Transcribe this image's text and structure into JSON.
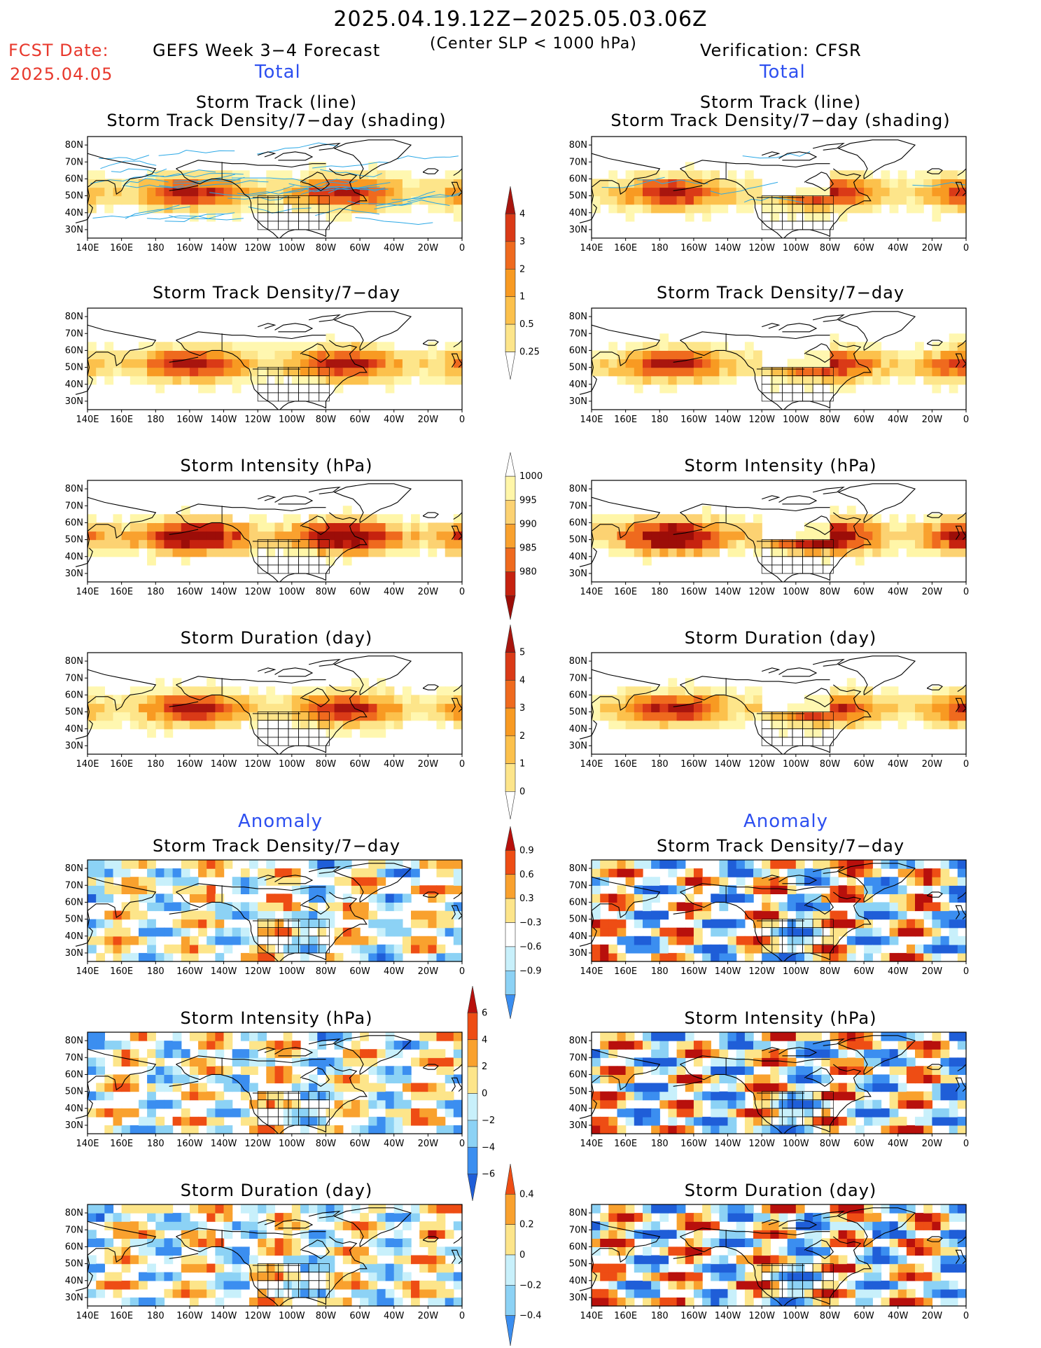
{
  "header": {
    "date_range": "2025.04.19.12Z−2025.05.03.06Z",
    "subtitle": "(Center SLP < 1000 hPa)",
    "fcst_label": "FCST Date:",
    "fcst_date": "2025.04.05",
    "forecast_label": "GEFS Week 3−4 Forecast",
    "verification_label": "Verification: CFSR"
  },
  "sections": {
    "total": "Total",
    "anomaly": "Anomaly"
  },
  "panel_titles": {
    "track_line": "Storm Track (line)",
    "track_density_shading": "Storm Track Density/7−day (shading)",
    "track_density": "Storm Track Density/7−day",
    "intensity": "Storm Intensity (hPa)",
    "duration": "Storm Duration (day)"
  },
  "axes": {
    "lat_labels": [
      "80N",
      "70N",
      "60N",
      "50N",
      "40N",
      "30N"
    ],
    "lon_labels": [
      "140E",
      "160E",
      "180",
      "160W",
      "140W",
      "120W",
      "100W",
      "80W",
      "60W",
      "40W",
      "20W",
      "0"
    ]
  },
  "colorbars": {
    "density_total": [
      "0.25",
      "0.5",
      "1",
      "2",
      "3",
      "4"
    ],
    "intensity_total": [
      "1000",
      "995",
      "990",
      "985",
      "980"
    ],
    "duration_total": [
      "0",
      "1",
      "2",
      "3",
      "4",
      "5"
    ],
    "density_anom": [
      "−0.9",
      "−0.6",
      "−0.3",
      "0.3",
      "0.6",
      "0.9"
    ],
    "intensity_anom": [
      "−6",
      "−4",
      "−2",
      "0",
      "2",
      "4",
      "6"
    ],
    "duration_anom": [
      "−0.4",
      "−0.2",
      "0",
      "0.2",
      "0.4"
    ]
  },
  "colors": {
    "total_scale": [
      "#fff7b0",
      "#fde58a",
      "#fcc14c",
      "#f89a22",
      "#ef6a1e",
      "#da3a17",
      "#a8150e"
    ],
    "intensity_total_scale": [
      "#fff6a8",
      "#fcd272",
      "#f9a12e",
      "#ef6a1e",
      "#c6220f",
      "#9c0d08"
    ],
    "anomaly_scale": [
      "#1f5ed8",
      "#3b8ef0",
      "#8cd2f5",
      "#c8f0fb",
      "#ffffff",
      "#fde58a",
      "#f9a12e",
      "#ee4d14",
      "#b8100c"
    ],
    "continent_line": "#000000",
    "track_line": "#2ba8e6",
    "title_red": "#e8382c",
    "section_blue": "#2d4ff0"
  }
}
